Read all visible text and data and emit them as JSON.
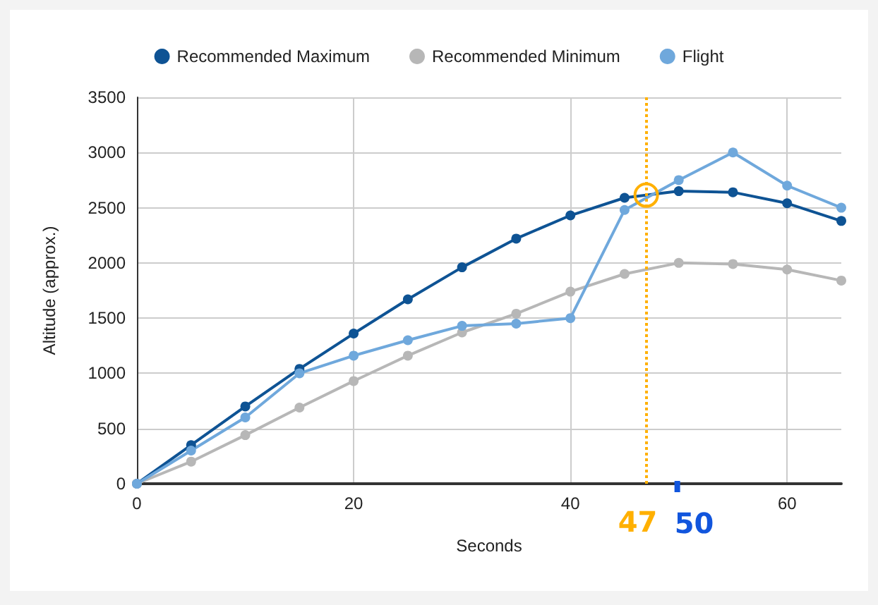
{
  "chart_data": {
    "type": "line",
    "xlabel": "Seconds",
    "ylabel": "Altitude (approx.)",
    "x": [
      0,
      5,
      10,
      15,
      20,
      25,
      30,
      35,
      40,
      45,
      50,
      55,
      60,
      65
    ],
    "series": [
      {
        "name": "Recommended Maximum",
        "color": "#0e5394",
        "values": [
          0,
          350,
          700,
          1040,
          1360,
          1670,
          1960,
          2220,
          2430,
          2590,
          2650,
          2640,
          2540,
          2380
        ]
      },
      {
        "name": "Recommended Minimum",
        "color": "#b7b7b7",
        "values": [
          0,
          200,
          440,
          690,
          930,
          1160,
          1370,
          1540,
          1740,
          1900,
          2000,
          1990,
          1940,
          1840
        ]
      },
      {
        "name": "Flight",
        "color": "#6fa8dc",
        "values": [
          0,
          300,
          600,
          1000,
          1160,
          1300,
          1430,
          1450,
          1500,
          2480,
          2750,
          3000,
          2700,
          2500
        ]
      }
    ],
    "xlim": [
      0,
      65
    ],
    "xticks": [
      0,
      20,
      40,
      60
    ],
    "ylim": [
      0,
      3500
    ],
    "yticks": [
      0,
      500,
      1000,
      1500,
      2000,
      2500,
      3000,
      3500
    ],
    "grid": true,
    "legend": "top",
    "marker": "circle",
    "line_style": "solid",
    "ref_lines": [
      {
        "axis": "x",
        "value": 47,
        "label": "47",
        "color": "#ffb000",
        "line_style": "dotted"
      }
    ],
    "annotations": [
      "50"
    ]
  }
}
